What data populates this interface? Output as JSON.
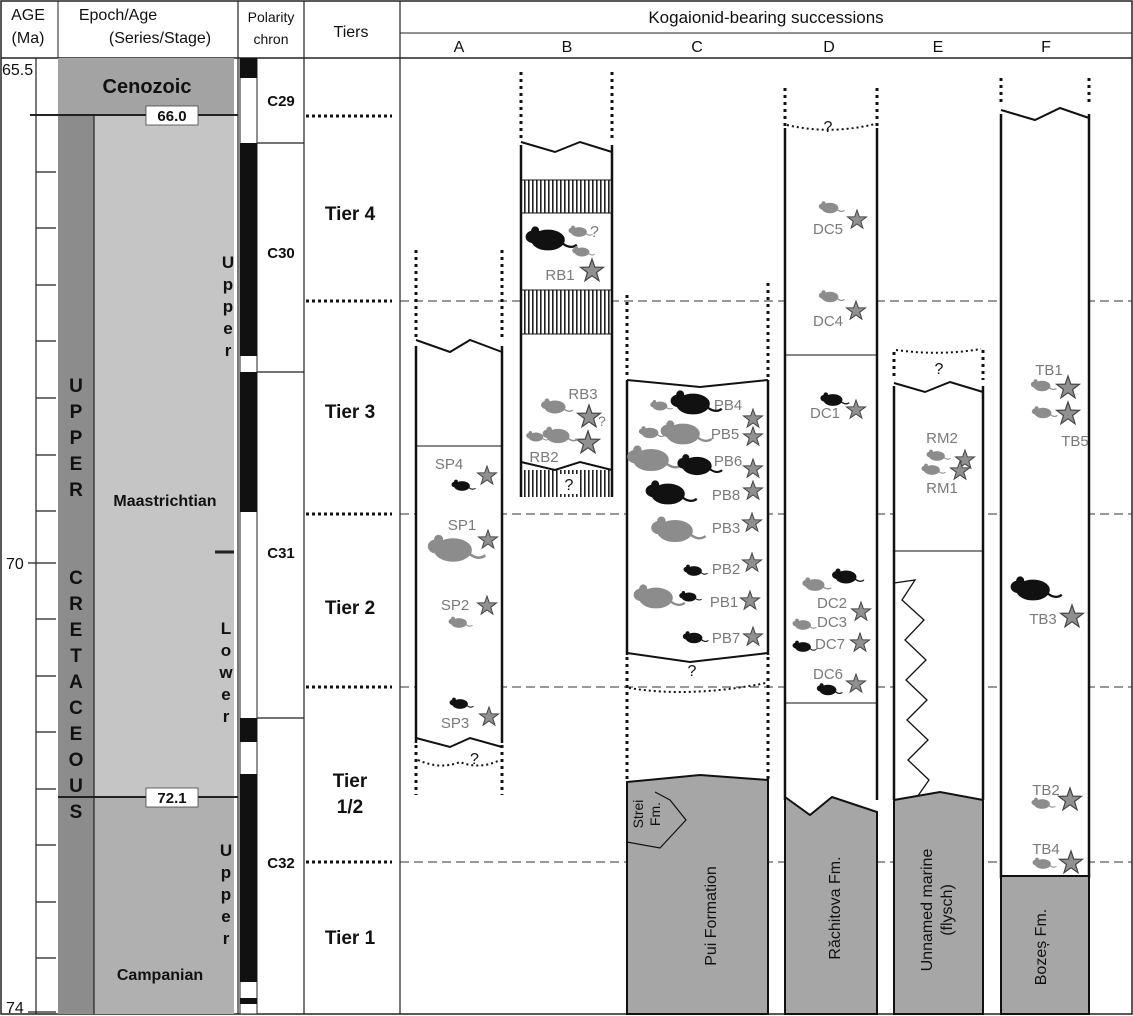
{
  "header": {
    "age_label": "AGE",
    "age_unit": "(Ma)",
    "epoch_label": "Epoch/Age",
    "series_stage_label": "(Series/Stage)",
    "polarity_label": "Polarity",
    "chron_label": "chron",
    "tiers_label": "Tiers",
    "successions_label": "Kogaionid-bearing successions"
  },
  "columns": [
    "A",
    "B",
    "C",
    "D",
    "E",
    "F"
  ],
  "age_ticks": [
    "65.5",
    "70",
    "74"
  ],
  "boundaries": [
    "66.0",
    "72.1"
  ],
  "chronostrat": {
    "cenozoic": "Cenozoic",
    "upper_cretaceous_letters": [
      "U",
      "P",
      "P",
      "E",
      "R",
      "",
      "C",
      "R",
      "E",
      "T",
      "A",
      "C",
      "E",
      "O",
      "U",
      "S"
    ],
    "maastrichtian": "Maastrichtian",
    "campanian": "Campanian",
    "upper_maas_letters": [
      "U",
      "p",
      "p",
      "e",
      "r"
    ],
    "lower_maas_letters": [
      "L",
      "o",
      "w",
      "e",
      "r"
    ],
    "upper_camp_letters": [
      "U",
      "p",
      "p",
      "e",
      "r"
    ]
  },
  "chrons": [
    "C29",
    "C30",
    "C31",
    "C32"
  ],
  "tiers": {
    "tier4": "Tier 4",
    "tier3": "Tier 3",
    "tier2": "Tier 2",
    "tier12_line1": "Tier",
    "tier12_line2": "1/2",
    "tier1": "Tier 1"
  },
  "formations": {
    "pui": "Pui Formation",
    "strei_line1": "Strei",
    "strei_line2": "Fm.",
    "rachitova": "Răchitova Fm.",
    "unnamed_line1": "Unnamed marine",
    "unnamed_line2": "(flysch)",
    "bozes": "Bozeș Fm."
  },
  "question_mark": "?",
  "sites": {
    "A": [
      "SP4",
      "SP1",
      "SP2",
      "SP3"
    ],
    "B": [
      "RB1",
      "RB3",
      "RB2"
    ],
    "C": [
      "PB4",
      "PB5",
      "PB6",
      "PB8",
      "PB3",
      "PB2",
      "PB1",
      "PB7"
    ],
    "D": [
      "DC5",
      "DC4",
      "DC1",
      "DC2",
      "DC3",
      "DC7",
      "DC6"
    ],
    "E": [
      "RM2",
      "RM1"
    ],
    "F": [
      "TB1",
      "TB5",
      "TB3",
      "TB2",
      "TB4"
    ]
  },
  "colors": {
    "cenozoic_band": "#a3a3a3",
    "cretaceous_dark": "#8c8c8c",
    "maastrichtian_fill": "#c5c5c5",
    "campanian_fill": "#b0b0b0",
    "formation_fill": "#a6a6a6",
    "site_label": "#7a7a7a",
    "star_fill": "#909090",
    "rodent_black": "#111111",
    "rodent_grey": "#8c8c8c"
  },
  "icons": [
    "star-icon",
    "rodent-icon"
  ]
}
